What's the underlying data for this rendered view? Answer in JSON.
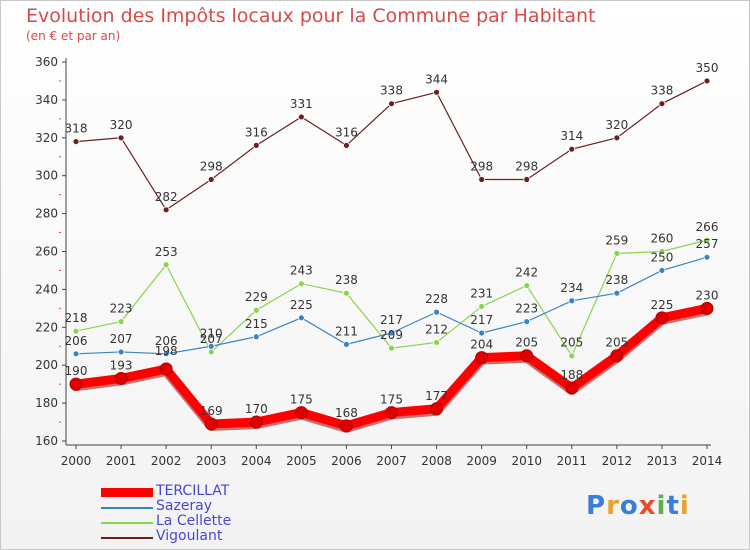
{
  "title": "Evolution des Impôts locaux pour la Commune par Habitant",
  "subtitle": "(en € et par an)",
  "logo": {
    "text": "Proxiti",
    "letter_colors": [
      "#3a7fd5",
      "#e8a12f",
      "#3a7fd5",
      "#e84a2a",
      "#5ab04a",
      "#3a7fd5",
      "#e8a12f"
    ]
  },
  "chart_data": {
    "type": "line",
    "title": "Evolution des Impôts locaux pour la Commune par Habitant",
    "subtitle": "(en € et par an)",
    "x": [
      "2000",
      "2001",
      "2002",
      "2003",
      "2004",
      "2005",
      "2006",
      "2007",
      "2008",
      "2009",
      "2010",
      "2011",
      "2012",
      "2013",
      "2014"
    ],
    "ylim": [
      160,
      360
    ],
    "yticks": [
      160,
      180,
      200,
      220,
      240,
      260,
      280,
      300,
      320,
      340,
      360
    ],
    "grid": false,
    "legend_position": "bottom-left",
    "series": [
      {
        "name": "TERCILLAT",
        "color": "#ff0000",
        "values": [
          190,
          193,
          198,
          169,
          170,
          175,
          168,
          175,
          177,
          204,
          205,
          188,
          205,
          225,
          230
        ],
        "labels": [
          "190",
          "193",
          "",
          "169",
          "170",
          "175",
          "168",
          "175",
          "177",
          "204",
          "205",
          "188",
          "205",
          "225",
          "230"
        ]
      },
      {
        "name": "Sazeray",
        "color": "#3a82c4",
        "values": [
          206,
          207,
          206,
          210,
          215,
          225,
          211,
          217,
          228,
          217,
          223,
          234,
          238,
          250,
          257
        ],
        "labels": [
          "206",
          "207",
          "206",
          "210",
          "215",
          "225",
          "211",
          "217",
          "228",
          "217",
          "223",
          "234",
          "238",
          "250",
          "257"
        ]
      },
      {
        "name": "La Cellette",
        "color": "#88d44a",
        "values": [
          218,
          223,
          253,
          207,
          229,
          243,
          238,
          209,
          212,
          231,
          242,
          205,
          259,
          260,
          266
        ],
        "labels": [
          "218",
          "223",
          "253",
          "207",
          "229",
          "243",
          "238",
          "209",
          "212",
          "231",
          "242",
          "205",
          "259",
          "260",
          "266"
        ]
      },
      {
        "name": "Vigoulant",
        "color": "#6b1f1f",
        "values": [
          318,
          320,
          282,
          298,
          316,
          331,
          316,
          338,
          344,
          298,
          298,
          314,
          320,
          338,
          350
        ],
        "labels": [
          "318",
          "320",
          "282",
          "298",
          "316",
          "331",
          "316",
          "338",
          "344",
          "298",
          "298",
          "314",
          "320",
          "338",
          "350"
        ]
      }
    ],
    "extra_labels": [
      "198"
    ]
  }
}
